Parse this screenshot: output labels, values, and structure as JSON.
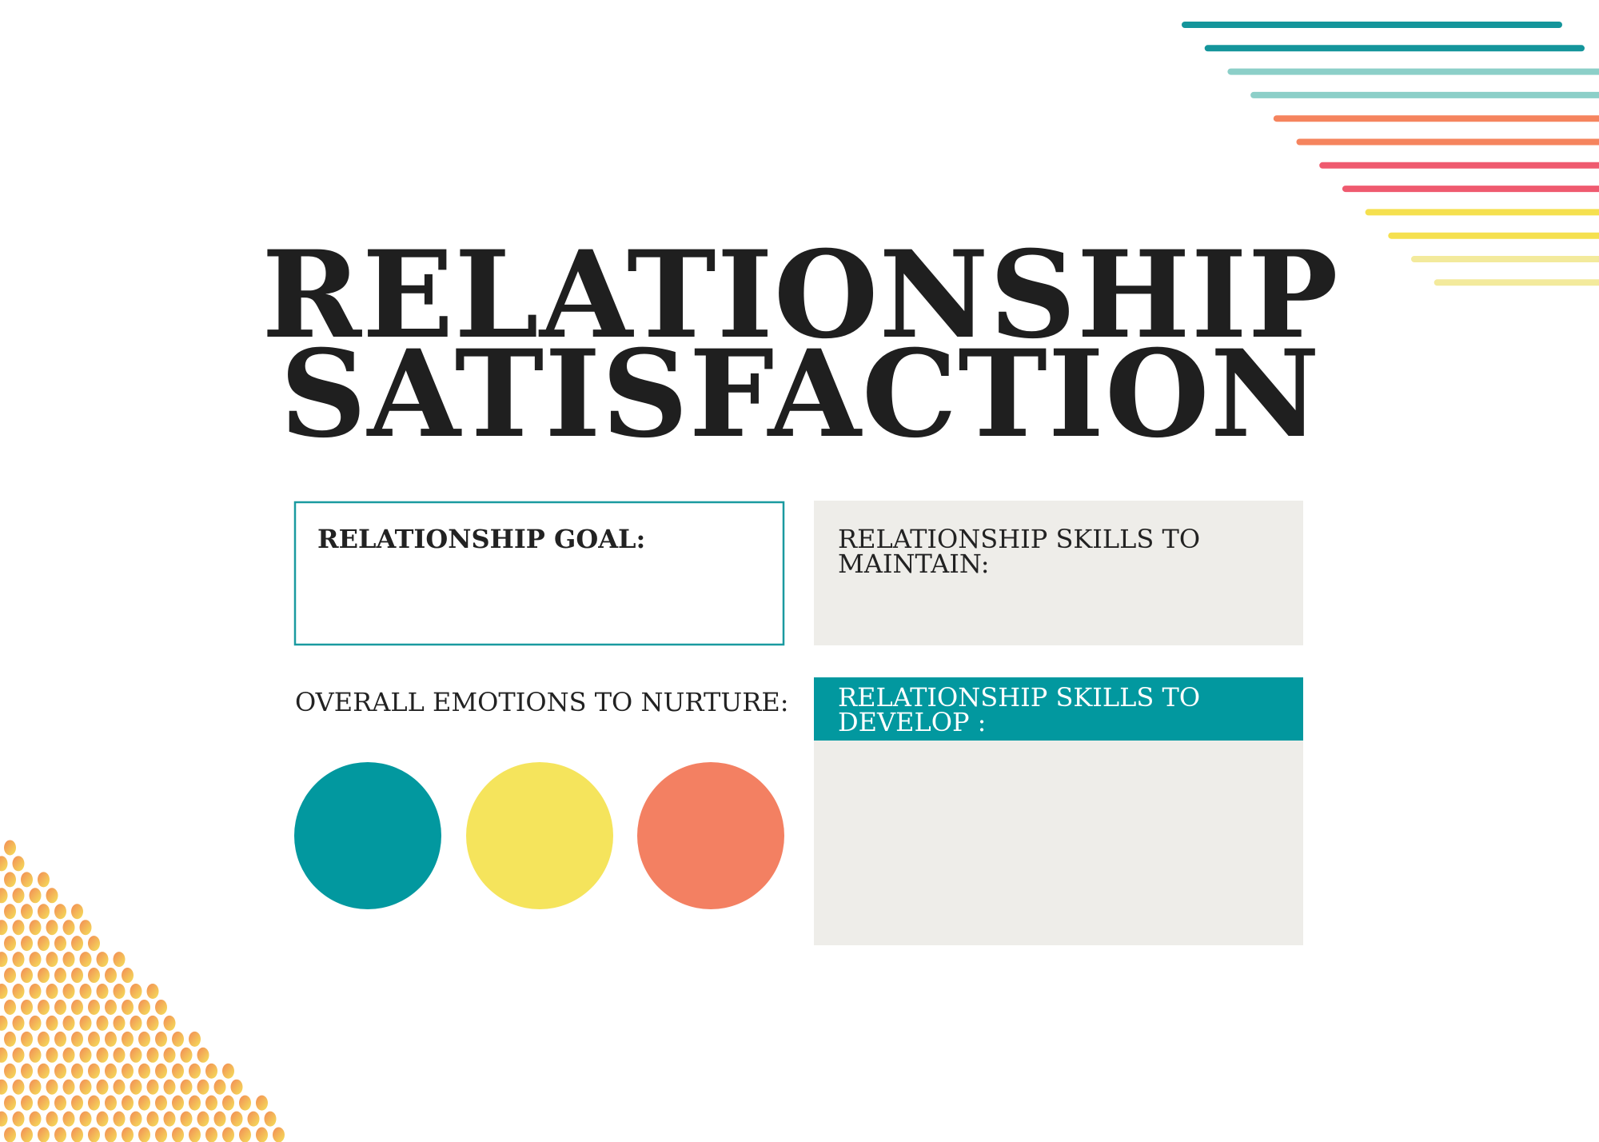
{
  "title": {
    "lines": [
      "RELATIONSHIP",
      "SATISFACTION"
    ]
  },
  "sections": {
    "goal": {
      "label": "RELATIONSHIP GOAL:"
    },
    "maintain": {
      "label_lines": [
        "RELATIONSHIP SKILLS TO",
        "MAINTAIN:"
      ]
    },
    "emotions": {
      "label": "OVERALL EMOTIONS TO NURTURE:"
    },
    "develop": {
      "label_lines": [
        "RELATIONSHIP SKILLS TO",
        "DEVELOP :"
      ]
    }
  }
}
